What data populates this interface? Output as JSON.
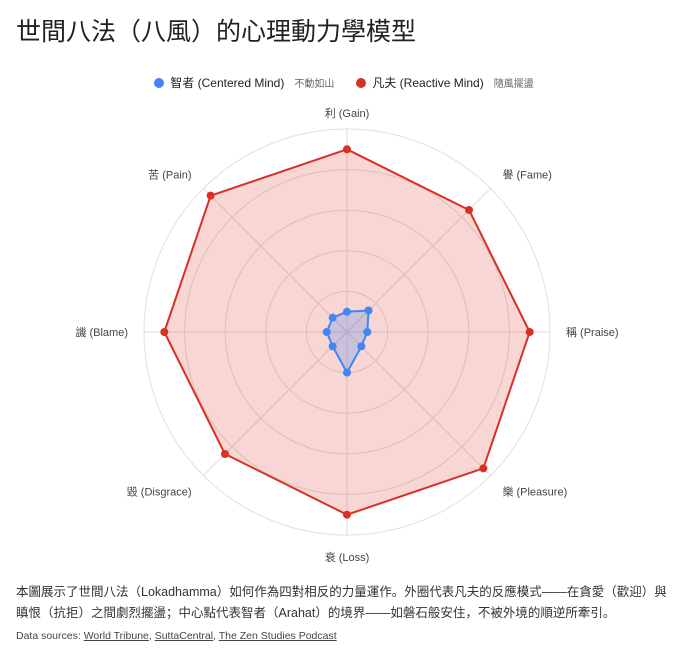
{
  "title": "世間八法（八風）的心理動力學模型",
  "description": "本圖展示了世間八法（Lokadhamma）如何作為四對相反的力量運作。外圈代表凡夫的反應模式——在貪愛（歡迎）與瞋恨（抗拒）之間劇烈擺盪；中心點代表智者（Arahat）的境界——如磐石般安住，不被外境的順逆所牽引。",
  "sources": {
    "label": "Data sources:",
    "links": [
      "World Tribune",
      "SuttaCentral",
      "The Zen Studies Podcast"
    ]
  },
  "chart_data": {
    "type": "radar",
    "categories": [
      "利 (Gain)",
      "譽 (Fame)",
      "稱 (Praise)",
      "樂 (Pleasure)",
      "衰 (Loss)",
      "毀 (Disgrace)",
      "譏 (Blame)",
      "苦 (Pain)"
    ],
    "rlim": [
      0,
      10
    ],
    "grid": true,
    "legend": "top",
    "series": [
      {
        "name": "智者 (Centered Mind)",
        "note": "不動如山",
        "color": "#4285f4",
        "values": [
          1,
          1.5,
          1,
          1,
          2,
          1,
          1,
          1
        ]
      },
      {
        "name": "凡夫 (Reactive Mind)",
        "note": "隨風擺盪",
        "color": "#d93025",
        "values": [
          9,
          8.5,
          9,
          9.5,
          9,
          8.5,
          9,
          9.5
        ]
      }
    ]
  }
}
